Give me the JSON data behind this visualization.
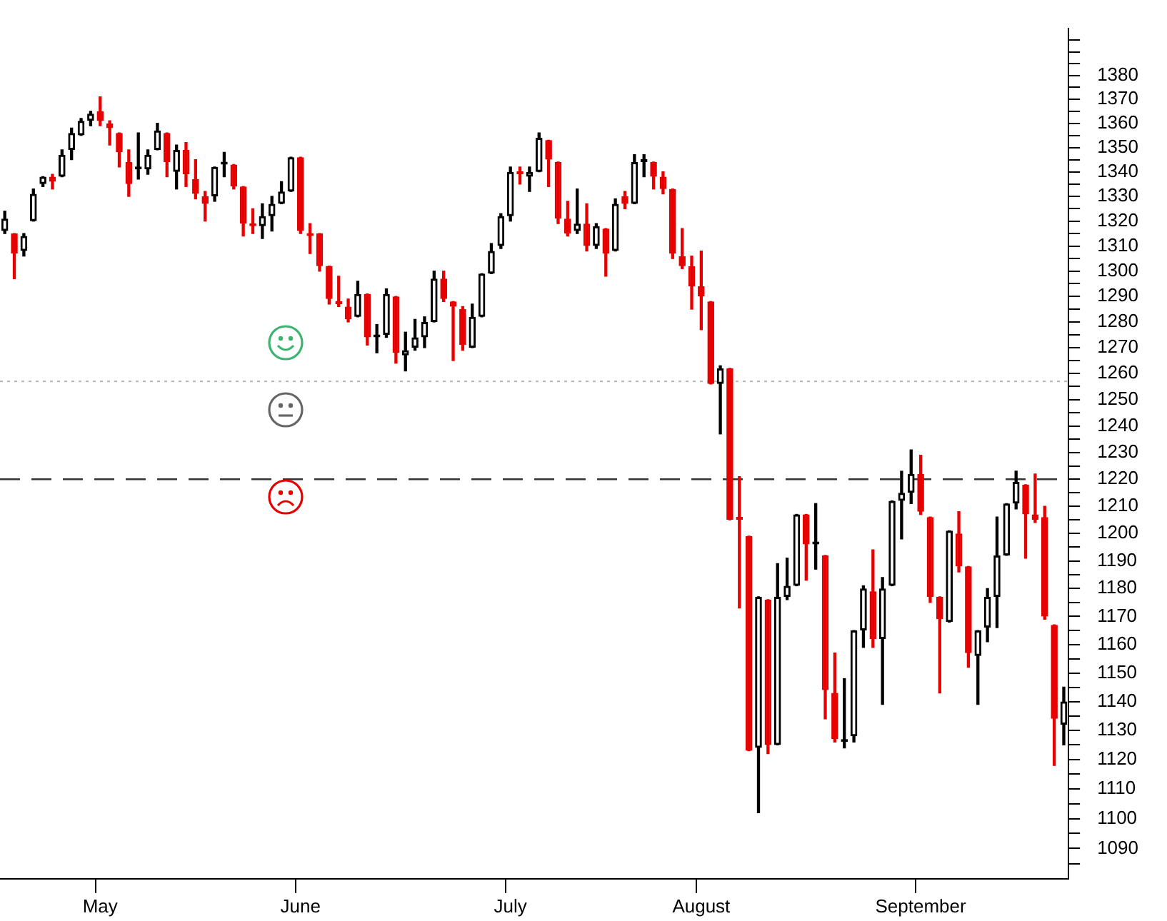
{
  "chart_data": {
    "type": "candlestick",
    "categories": [
      null,
      null,
      null,
      null,
      null,
      null,
      null,
      null,
      null,
      null,
      "May",
      null,
      null,
      null,
      null,
      null,
      null,
      null,
      null,
      null,
      null,
      null,
      null,
      null,
      null,
      null,
      null,
      null,
      null,
      null,
      null,
      "June",
      null,
      null,
      null,
      null,
      null,
      null,
      null,
      null,
      null,
      null,
      null,
      null,
      null,
      null,
      null,
      null,
      null,
      null,
      null,
      null,
      null,
      "July",
      null,
      null,
      null,
      null,
      null,
      null,
      null,
      null,
      null,
      null,
      null,
      null,
      null,
      null,
      null,
      null,
      null,
      null,
      null,
      "August",
      null,
      null,
      null,
      null,
      null,
      null,
      null,
      null,
      null,
      null,
      null,
      null,
      null,
      null,
      null,
      null,
      null,
      null,
      null,
      null,
      null,
      null,
      "September",
      null,
      null,
      null,
      null,
      null,
      null,
      null,
      null,
      null,
      null,
      null,
      null,
      null,
      null,
      null
    ],
    "ohlc": [
      [
        1316,
        1324,
        1315,
        1321
      ],
      [
        1315,
        1315,
        1297,
        1307
      ],
      [
        1308,
        1315,
        1306,
        1314
      ],
      [
        1320,
        1333,
        1320,
        1331
      ],
      [
        1335,
        1338,
        1334,
        1338
      ],
      [
        1338,
        1339,
        1333,
        1336
      ],
      [
        1338,
        1349,
        1338,
        1347
      ],
      [
        1349,
        1358,
        1345,
        1356
      ],
      [
        1355,
        1362,
        1355,
        1361
      ],
      [
        1361,
        1365,
        1359,
        1364
      ],
      [
        1365,
        1371,
        1359,
        1361
      ],
      [
        1360,
        1361,
        1351,
        1358
      ],
      [
        1356,
        1356,
        1342,
        1348
      ],
      [
        1344,
        1349,
        1330,
        1335
      ],
      [
        1341,
        1356,
        1337,
        1342
      ],
      [
        1341,
        1349,
        1339,
        1347
      ],
      [
        1349,
        1360,
        1349,
        1357
      ],
      [
        1356,
        1356,
        1338,
        1344
      ],
      [
        1340,
        1351,
        1333,
        1349
      ],
      [
        1349,
        1352,
        1334,
        1339
      ],
      [
        1337,
        1345,
        1329,
        1331
      ],
      [
        1330,
        1332,
        1320,
        1327
      ],
      [
        1330,
        1342,
        1328,
        1342
      ],
      [
        1343,
        1348,
        1338,
        1344
      ],
      [
        1343,
        1343,
        1333,
        1334
      ],
      [
        1334,
        1334,
        1314,
        1319
      ],
      [
        1319,
        1325,
        1315,
        1318
      ],
      [
        1318,
        1327,
        1313,
        1322
      ],
      [
        1322,
        1330,
        1316,
        1327
      ],
      [
        1327,
        1336,
        1327,
        1332
      ],
      [
        1332,
        1346,
        1332,
        1346
      ],
      [
        1346,
        1346,
        1315,
        1316
      ],
      [
        1315,
        1319,
        1307,
        1314
      ],
      [
        1315,
        1315,
        1300,
        1302
      ],
      [
        1302,
        1302,
        1287,
        1289
      ],
      [
        1288,
        1298,
        1286,
        1287
      ],
      [
        1286,
        1289,
        1280,
        1281
      ],
      [
        1282,
        1296,
        1282,
        1291
      ],
      [
        1291,
        1291,
        1271,
        1274
      ],
      [
        1274,
        1279,
        1268,
        1275
      ],
      [
        1275,
        1293,
        1274,
        1291
      ],
      [
        1290,
        1290,
        1264,
        1268
      ],
      [
        1267,
        1276,
        1261,
        1269
      ],
      [
        1270,
        1281,
        1269,
        1274
      ],
      [
        1274,
        1282,
        1270,
        1280
      ],
      [
        1280,
        1300,
        1280,
        1297
      ],
      [
        1297,
        1300,
        1288,
        1289
      ],
      [
        1288,
        1288,
        1265,
        1286
      ],
      [
        1285,
        1286,
        1269,
        1271
      ],
      [
        1270,
        1287,
        1270,
        1282
      ],
      [
        1282,
        1299,
        1282,
        1299
      ],
      [
        1299,
        1311,
        1299,
        1308
      ],
      [
        1310,
        1323,
        1309,
        1322
      ],
      [
        1322,
        1342,
        1320,
        1340
      ],
      [
        1340,
        1342,
        1335,
        1339
      ],
      [
        1338,
        1342,
        1332,
        1340
      ],
      [
        1340,
        1356,
        1340,
        1354
      ],
      [
        1353,
        1353,
        1334,
        1345
      ],
      [
        1344,
        1344,
        1319,
        1321
      ],
      [
        1321,
        1328,
        1314,
        1315
      ],
      [
        1316,
        1333,
        1315,
        1319
      ],
      [
        1319,
        1327,
        1308,
        1310
      ],
      [
        1310,
        1319,
        1309,
        1318
      ],
      [
        1317,
        1317,
        1298,
        1307
      ],
      [
        1308,
        1329,
        1308,
        1327
      ],
      [
        1330,
        1332,
        1325,
        1327
      ],
      [
        1327,
        1347,
        1327,
        1344
      ],
      [
        1344,
        1347,
        1338,
        1345
      ],
      [
        1344,
        1344,
        1333,
        1338
      ],
      [
        1338,
        1340,
        1331,
        1333
      ],
      [
        1333,
        1333,
        1305,
        1307
      ],
      [
        1306,
        1317,
        1301,
        1302
      ],
      [
        1302,
        1306,
        1285,
        1294
      ],
      [
        1294,
        1308,
        1277,
        1290
      ],
      [
        1288,
        1288,
        1256,
        1256
      ],
      [
        1256,
        1263,
        1237,
        1262
      ],
      [
        1262,
        1262,
        1205,
        1205
      ],
      [
        1206,
        1221,
        1173,
        1205
      ],
      [
        1199,
        1199,
        1123,
        1123
      ],
      [
        1124,
        1177,
        1102,
        1177
      ],
      [
        1176,
        1176,
        1122,
        1125
      ],
      [
        1125,
        1189,
        1125,
        1177
      ],
      [
        1177,
        1191,
        1176,
        1181
      ],
      [
        1181,
        1207,
        1181,
        1207
      ],
      [
        1207,
        1207,
        1183,
        1196
      ],
      [
        1196,
        1211,
        1187,
        1197
      ],
      [
        1192,
        1192,
        1134,
        1144
      ],
      [
        1143,
        1157,
        1126,
        1127
      ],
      [
        1126,
        1148,
        1124,
        1127
      ],
      [
        1128,
        1165,
        1126,
        1165
      ],
      [
        1165,
        1181,
        1159,
        1180
      ],
      [
        1179,
        1194,
        1159,
        1162
      ],
      [
        1162,
        1184,
        1139,
        1180
      ],
      [
        1181,
        1212,
        1181,
        1212
      ],
      [
        1212,
        1223,
        1198,
        1215
      ],
      [
        1215,
        1231,
        1211,
        1222
      ],
      [
        1222,
        1229,
        1207,
        1208
      ],
      [
        1206,
        1206,
        1175,
        1177
      ],
      [
        1177,
        1177,
        1143,
        1169
      ],
      [
        1168,
        1201,
        1168,
        1201
      ],
      [
        1200,
        1208,
        1186,
        1188
      ],
      [
        1188,
        1188,
        1152,
        1157
      ],
      [
        1156,
        1165,
        1139,
        1165
      ],
      [
        1166,
        1180,
        1161,
        1177
      ],
      [
        1177,
        1206,
        1166,
        1192
      ],
      [
        1192,
        1211,
        1192,
        1211
      ],
      [
        1211,
        1223,
        1209,
        1219
      ],
      [
        1218,
        1218,
        1191,
        1207
      ],
      [
        1207,
        1222,
        1204,
        1205
      ],
      [
        1206,
        1210,
        1169,
        1170
      ],
      [
        1167,
        1167,
        1118,
        1134
      ],
      [
        1132,
        1145,
        1125,
        1140
      ]
    ],
    "colors": [
      "#000000",
      "#e60000",
      "#000000",
      "#000000",
      "#000000",
      "#e60000",
      "#000000",
      "#000000",
      "#000000",
      "#000000",
      "#e60000",
      "#e60000",
      "#e60000",
      "#e60000",
      "#000000",
      "#000000",
      "#000000",
      "#e60000",
      "#000000",
      "#e60000",
      "#e60000",
      "#e60000",
      "#000000",
      "#000000",
      "#e60000",
      "#e60000",
      "#e60000",
      "#000000",
      "#000000",
      "#000000",
      "#000000",
      "#e60000",
      "#e60000",
      "#e60000",
      "#e60000",
      "#e60000",
      "#e60000",
      "#000000",
      "#e60000",
      "#000000",
      "#000000",
      "#e60000",
      "#000000",
      "#000000",
      "#000000",
      "#000000",
      "#e60000",
      "#e60000",
      "#e60000",
      "#000000",
      "#000000",
      "#000000",
      "#000000",
      "#000000",
      "#e60000",
      "#000000",
      "#000000",
      "#e60000",
      "#e60000",
      "#e60000",
      "#000000",
      "#e60000",
      "#000000",
      "#e60000",
      "#000000",
      "#e60000",
      "#000000",
      "#000000",
      "#e60000",
      "#e60000",
      "#e60000",
      "#e60000",
      "#e60000",
      "#e60000",
      "#e60000",
      "#000000",
      "#e60000",
      "#e60000",
      "#e60000",
      "#000000",
      "#e60000",
      "#000000",
      "#000000",
      "#000000",
      "#e60000",
      "#000000",
      "#e60000",
      "#e60000",
      "#000000",
      "#000000",
      "#000000",
      "#e60000",
      "#000000",
      "#000000",
      "#000000",
      "#000000",
      "#e60000",
      "#e60000",
      "#e60000",
      "#000000",
      "#e60000",
      "#e60000",
      "#000000",
      "#000000",
      "#000000",
      "#000000",
      "#000000",
      "#e60000",
      "#e60000",
      "#e60000",
      "#e60000",
      "#000000"
    ],
    "log": true,
    "ylim": [
      1080,
      1400
    ],
    "yticks": [
      {
        "value": 1085,
        "label": null
      },
      1090,
      {
        "value": 1095,
        "label": null
      },
      1100,
      {
        "value": 1105,
        "label": null
      },
      1110,
      {
        "value": 1115,
        "label": null
      },
      1120,
      {
        "value": 1125,
        "label": null
      },
      1130,
      {
        "value": 1135,
        "label": null
      },
      1140,
      {
        "value": 1145,
        "label": null
      },
      1150,
      {
        "value": 1155,
        "label": null
      },
      1160,
      {
        "value": 1165,
        "label": null
      },
      1170,
      {
        "value": 1175,
        "label": null
      },
      1180,
      {
        "value": 1185,
        "label": null
      },
      1190,
      {
        "value": 1195,
        "label": null
      },
      1200,
      {
        "value": 1205,
        "label": null
      },
      1210,
      {
        "value": 1215,
        "label": null
      },
      1220,
      {
        "value": 1225,
        "label": null
      },
      1230,
      {
        "value": 1235,
        "label": null
      },
      1240,
      {
        "value": 1245,
        "label": null
      },
      1250,
      {
        "value": 1255,
        "label": null
      },
      1260,
      {
        "value": 1265,
        "label": null
      },
      1270,
      {
        "value": 1275,
        "label": null
      },
      1280,
      {
        "value": 1285,
        "label": null
      },
      1290,
      {
        "value": 1295,
        "label": null
      },
      1300,
      {
        "value": 1305,
        "label": null
      },
      1310,
      {
        "value": 1315,
        "label": null
      },
      1320,
      {
        "value": 1325,
        "label": null
      },
      1330,
      {
        "value": 1335,
        "label": null
      },
      1340,
      {
        "value": 1345,
        "label": null
      },
      1350,
      {
        "value": 1355,
        "label": null
      },
      1360,
      {
        "value": 1365,
        "label": null
      },
      1370,
      {
        "value": 1375,
        "label": null
      },
      1380,
      {
        "value": 1385,
        "label": null
      },
      {
        "value": 1390,
        "label": null
      },
      {
        "value": 1395,
        "label": null
      }
    ],
    "ref_lines": [
      {
        "axis": "y",
        "value": 1257,
        "color": "#bbbbbb",
        "line_style": "dotted"
      },
      {
        "axis": "y",
        "value": 1220,
        "color": "#333333",
        "line_style": "dashed"
      }
    ],
    "grid": false,
    "legend": false
  }
}
